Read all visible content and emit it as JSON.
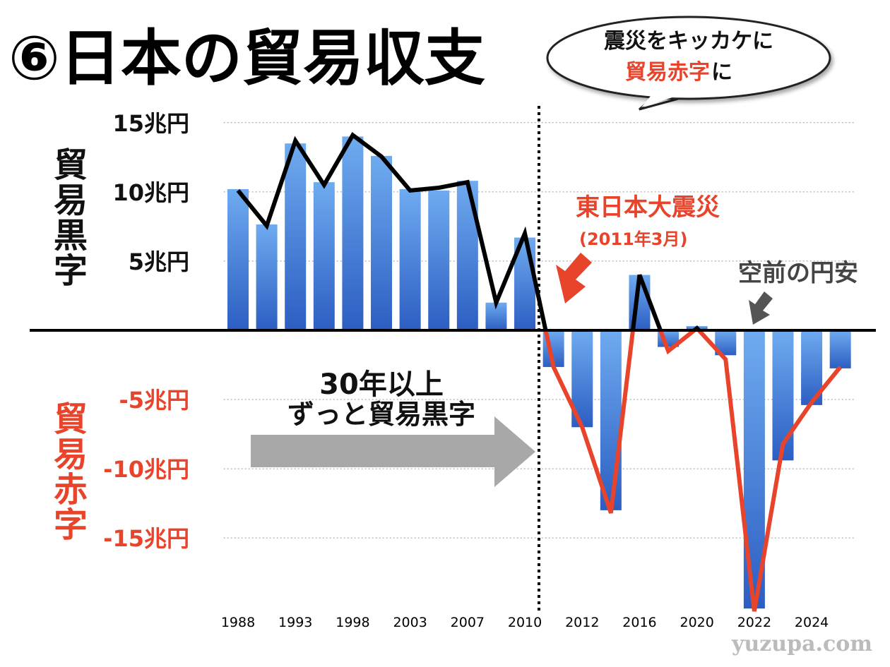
{
  "chart_data": {
    "type": "bar",
    "title": "⑥日本の貿易収支",
    "bubble": {
      "line1": "震災をキッカケに",
      "highlight": "貿易赤字",
      "tail": "に"
    },
    "surplus_label": "貿易黒字",
    "deficit_label": "貿易赤字",
    "annotations": {
      "quake": "東日本大震災",
      "quake_date": "(2011年3月)",
      "yen": "空前の円安",
      "years": "30年以上",
      "surplus_run": "ずっと貿易黒字"
    },
    "watermark": "yuzupa.com",
    "categories": [
      "1988",
      null,
      "1993",
      null,
      "1998",
      null,
      "2003",
      null,
      "2007",
      null,
      "2010",
      null,
      "2012",
      null,
      "2016",
      null,
      "2020",
      null,
      "2022",
      null,
      "2024",
      null
    ],
    "values": [
      10.2,
      7.65,
      13.5,
      10.7,
      14.0,
      12.6,
      10.2,
      10.1,
      10.8,
      2.0,
      6.7,
      -2.65,
      -7.0,
      -13.0,
      4.0,
      -1.2,
      0.3,
      -1.8,
      -20.1,
      -9.4,
      -5.4,
      -2.75
    ],
    "color": [
      "#6fabf0",
      "#2c5ec2"
    ],
    "line": {
      "values": [
        10.1,
        7.55,
        13.7,
        10.5,
        14.1,
        12.55,
        10.1,
        10.3,
        10.7,
        2.0,
        7.0,
        -2.65,
        -7.0,
        -13.2,
        4.0,
        -1.5,
        0.15,
        -2.1,
        -20.3,
        -8.2,
        -5.2,
        -2.65
      ],
      "color_above": "#000000",
      "color_below": "#e8432b"
    },
    "ylim": [
      -20.5,
      15.5
    ],
    "yticks": [
      {
        "value": 15,
        "label": "15兆円"
      },
      {
        "value": 10,
        "label": "10兆円"
      },
      {
        "value": 5,
        "label": "5兆円"
      },
      {
        "value": -5,
        "label": "-5兆円"
      },
      {
        "value": -10,
        "label": "-10兆円"
      },
      {
        "value": -15,
        "label": "-15兆円"
      }
    ],
    "grid": true
  }
}
